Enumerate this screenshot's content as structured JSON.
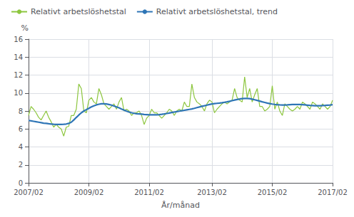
{
  "chart_data": {
    "type": "line",
    "xlabel": "År/månad",
    "ylabel": "%",
    "categories": [
      "2007/02",
      null,
      null,
      null,
      null,
      null,
      null,
      null,
      null,
      null,
      null,
      null,
      null,
      null,
      null,
      null,
      null,
      null,
      null,
      null,
      null,
      null,
      null,
      null,
      "2009/02",
      null,
      null,
      null,
      null,
      null,
      null,
      null,
      null,
      null,
      null,
      null,
      null,
      null,
      null,
      null,
      null,
      null,
      null,
      null,
      null,
      null,
      null,
      null,
      "2011/02",
      null,
      null,
      null,
      null,
      null,
      null,
      null,
      null,
      null,
      null,
      null,
      null,
      null,
      null,
      null,
      null,
      null,
      null,
      null,
      null,
      null,
      null,
      null,
      null,
      "2013/02",
      null,
      null,
      null,
      null,
      null,
      null,
      null,
      null,
      null,
      null,
      null,
      null,
      null,
      null,
      null,
      null,
      null,
      null,
      null,
      null,
      null,
      null,
      null,
      "2015/02",
      null,
      null,
      null,
      null,
      null,
      null,
      null,
      null,
      null,
      null,
      null,
      null,
      null,
      null,
      null,
      null,
      null,
      null,
      null,
      null,
      null,
      null,
      null,
      "2017/02"
    ],
    "series": [
      {
        "name": "Relativt arbetslöshetstal",
        "color": "#8dc63f",
        "values": [
          7.5,
          8.5,
          8.2,
          7.8,
          7.3,
          7.0,
          7.5,
          8.0,
          7.3,
          6.8,
          6.2,
          6.5,
          6.2,
          6.0,
          5.2,
          6.2,
          6.3,
          7.5,
          7.5,
          8.2,
          11.0,
          10.5,
          8.0,
          7.8,
          9.2,
          9.5,
          9.0,
          8.8,
          10.5,
          9.8,
          8.8,
          8.5,
          8.2,
          8.5,
          8.8,
          8.2,
          9.0,
          9.5,
          8.0,
          8.2,
          8.0,
          7.5,
          7.8,
          7.8,
          8.0,
          7.5,
          6.5,
          7.2,
          7.5,
          8.2,
          7.8,
          7.8,
          7.5,
          7.2,
          7.5,
          7.8,
          8.2,
          8.0,
          7.5,
          8.0,
          8.2,
          8.0,
          9.0,
          8.5,
          8.5,
          11.0,
          9.5,
          9.0,
          8.8,
          8.5,
          8.0,
          8.8,
          9.2,
          9.0,
          7.8,
          8.2,
          8.5,
          8.8,
          9.0,
          8.8,
          9.0,
          9.2,
          10.5,
          9.5,
          9.2,
          9.0,
          11.8,
          9.5,
          10.5,
          9.0,
          9.8,
          10.5,
          8.5,
          8.5,
          8.0,
          8.2,
          8.5,
          10.8,
          8.2,
          9.0,
          8.0,
          7.5,
          8.8,
          8.5,
          8.2,
          8.0,
          8.2,
          8.5,
          8.2,
          9.0,
          8.8,
          8.5,
          8.2,
          9.0,
          8.8,
          8.5,
          8.2,
          8.8,
          8.5,
          8.2,
          8.5,
          9.2
        ]
      },
      {
        "name": "Relativt arbetslöshetstal, trend",
        "color": "#2e75b6",
        "values": [
          6.95,
          6.9,
          6.85,
          6.8,
          6.75,
          6.7,
          6.65,
          6.62,
          6.58,
          6.55,
          6.52,
          6.5,
          6.5,
          6.5,
          6.52,
          6.55,
          6.62,
          6.75,
          7.0,
          7.28,
          7.55,
          7.8,
          8.0,
          8.15,
          8.3,
          8.45,
          8.58,
          8.68,
          8.75,
          8.8,
          8.8,
          8.78,
          8.72,
          8.65,
          8.55,
          8.45,
          8.35,
          8.22,
          8.1,
          7.98,
          7.88,
          7.8,
          7.74,
          7.7,
          7.68,
          7.65,
          7.62,
          7.6,
          7.58,
          7.57,
          7.57,
          7.58,
          7.6,
          7.63,
          7.67,
          7.72,
          7.77,
          7.83,
          7.88,
          7.93,
          7.98,
          8.03,
          8.08,
          8.13,
          8.18,
          8.23,
          8.3,
          8.38,
          8.45,
          8.52,
          8.58,
          8.65,
          8.72,
          8.78,
          8.82,
          8.85,
          8.88,
          8.92,
          8.97,
          9.02,
          9.08,
          9.15,
          9.22,
          9.28,
          9.33,
          9.37,
          9.4,
          9.4,
          9.37,
          9.32,
          9.25,
          9.18,
          9.1,
          9.02,
          8.95,
          8.88,
          8.82,
          8.77,
          8.73,
          8.7,
          8.68,
          8.67,
          8.67,
          8.68,
          8.7,
          8.72,
          8.73,
          8.73,
          8.72,
          8.7,
          8.68,
          8.65,
          8.62,
          8.6,
          8.58,
          8.58,
          8.58,
          8.6,
          8.62,
          8.65,
          8.67,
          8.7
        ]
      }
    ],
    "ylim": [
      0,
      16
    ],
    "yticks": [
      0,
      2,
      4,
      6,
      8,
      10,
      12,
      14,
      16
    ],
    "grid": true,
    "legend": "upper left"
  }
}
